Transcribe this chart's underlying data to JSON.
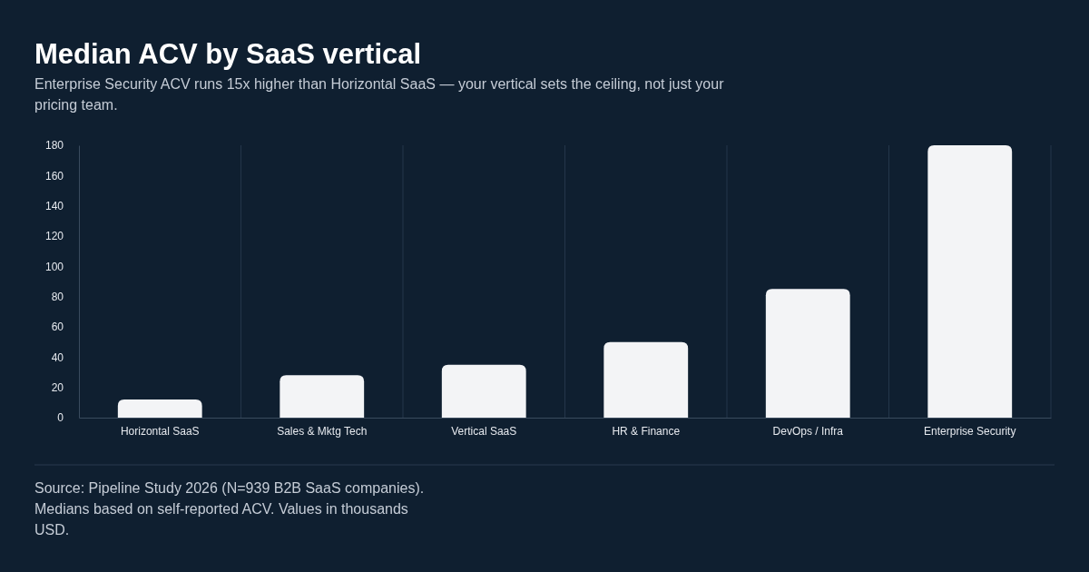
{
  "chart_data": {
    "type": "bar",
    "title": "Median ACV by SaaS vertical",
    "subtitle": "Enterprise Security ACV runs 15x higher than Horizontal SaaS — your vertical sets the ceiling, not just your pricing team.",
    "categories": [
      "Horizontal SaaS",
      "Sales & Mktg Tech",
      "Vertical SaaS",
      "HR & Finance",
      "DevOps / Infra",
      "Enterprise Security"
    ],
    "values": [
      12,
      28,
      35,
      50,
      85,
      180
    ],
    "color": "#f3f4f6",
    "ylim": [
      0,
      180
    ],
    "yticks": [
      0,
      20,
      40,
      60,
      80,
      100,
      120,
      140,
      160,
      180
    ],
    "grid": "x",
    "annotations": [
      "Source: Pipeline Study 2026 (N=939 B2B SaaS companies). Medians based on self-reported ACV. Values in thousands USD."
    ]
  }
}
